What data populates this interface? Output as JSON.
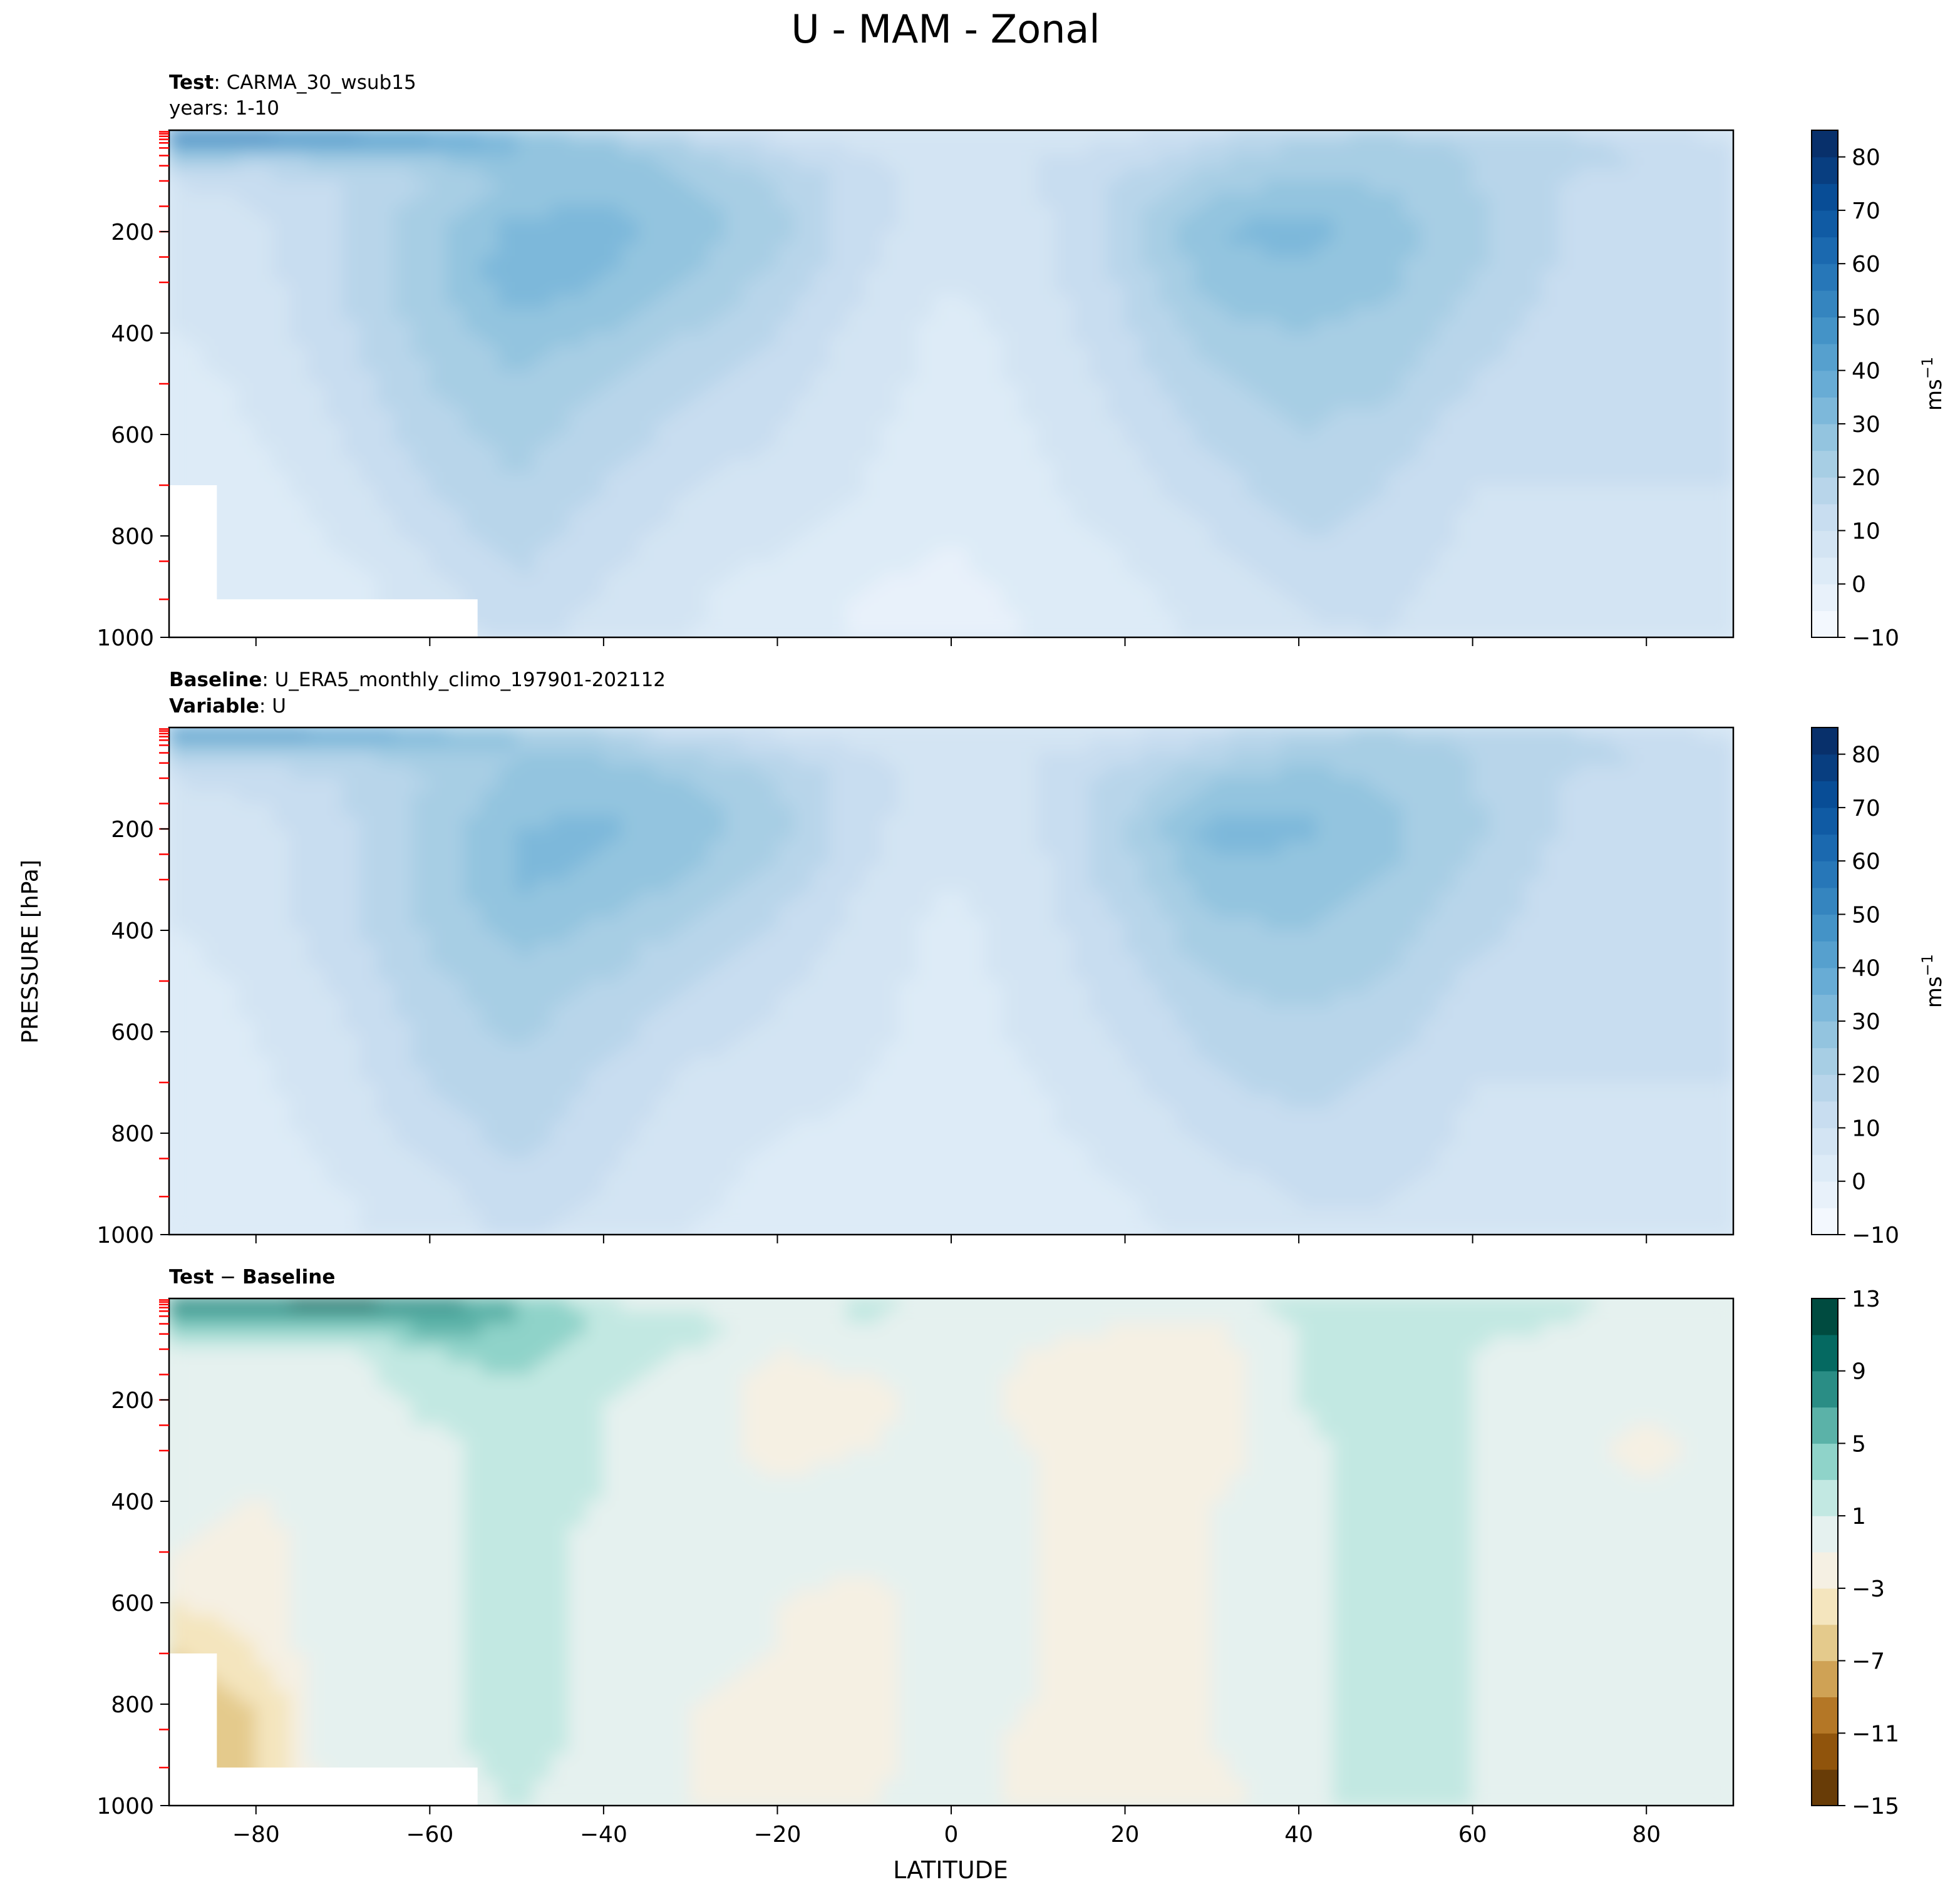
{
  "figure": {
    "title": "U - MAM - Zonal",
    "ylabel": "PRESSURE [hPa]",
    "xlabel": "LATITUDE"
  },
  "panels": [
    {
      "id": "test",
      "header_line1_bold": "Test",
      "header_line1_rest": ": CARMA_30_wsub15",
      "header_line2": "years: 1-10",
      "colorbar_label": "ms",
      "colorbar_exp": "−1"
    },
    {
      "id": "baseline",
      "header_line1_bold": "Baseline",
      "header_line1_rest": ": U_ERA5_monthly_climo_197901-202112",
      "header_line2_bold": "Variable",
      "header_line2_rest": ": U"
    },
    {
      "id": "diff",
      "header_bold_a": "Test",
      "header_sep": " − ",
      "header_bold_b": "Baseline"
    }
  ],
  "chart_data": [
    {
      "type": "heatmap",
      "title": "Test : CARMA_30_wsub15 / years: 1-10",
      "xlim": [
        -90,
        90
      ],
      "ylim": [
        1000,
        0
      ],
      "x_ticks": [
        -80,
        -60,
        -40,
        -20,
        0,
        20,
        40,
        60,
        80
      ],
      "y_ticks": [
        200,
        400,
        600,
        800,
        1000
      ],
      "colorbar": {
        "cmap": "Blues",
        "label": "ms-1",
        "levels": [
          -10,
          -5,
          0,
          5,
          10,
          15,
          20,
          25,
          30,
          35,
          40,
          45,
          50,
          55,
          60,
          65,
          70,
          75,
          80,
          85
        ],
        "tick_values": [
          -10,
          0,
          10,
          20,
          30,
          40,
          50,
          60,
          70,
          80
        ],
        "tick_labels": [
          "−10",
          "0",
          "10",
          "20",
          "30",
          "40",
          "50",
          "60",
          "70",
          "80"
        ]
      },
      "grid": {
        "lat": [
          -90,
          -80,
          -70,
          -60,
          -50,
          -40,
          -30,
          -20,
          -10,
          0,
          10,
          20,
          30,
          40,
          50,
          60,
          70,
          80,
          90
        ],
        "lev": [
          0,
          50,
          100,
          200,
          300,
          400,
          500,
          600,
          700,
          800,
          900,
          1000
        ],
        "values": [
          [
            60,
            60,
            55,
            45,
            30,
            20,
            12,
            8,
            5,
            5,
            5,
            8,
            12,
            18,
            20,
            18,
            15,
            10,
            8
          ],
          [
            25,
            22,
            22,
            25,
            30,
            28,
            22,
            15,
            10,
            8,
            10,
            12,
            18,
            22,
            22,
            20,
            18,
            15,
            12
          ],
          [
            10,
            12,
            15,
            20,
            26,
            28,
            25,
            20,
            12,
            8,
            10,
            16,
            22,
            26,
            24,
            20,
            15,
            12,
            10
          ],
          [
            5,
            8,
            15,
            24,
            32,
            32,
            28,
            22,
            12,
            5,
            8,
            18,
            30,
            32,
            28,
            22,
            15,
            12,
            10
          ],
          [
            5,
            8,
            15,
            24,
            33,
            30,
            25,
            18,
            10,
            5,
            8,
            16,
            27,
            29,
            26,
            20,
            14,
            10,
            10
          ],
          [
            5,
            7,
            14,
            22,
            28,
            25,
            20,
            15,
            8,
            3,
            7,
            14,
            23,
            25,
            23,
            18,
            12,
            10,
            10
          ],
          [
            3,
            6,
            12,
            20,
            24,
            20,
            16,
            12,
            7,
            3,
            6,
            12,
            19,
            22,
            21,
            15,
            10,
            10,
            10
          ],
          [
            2,
            5,
            10,
            18,
            22,
            18,
            13,
            10,
            6,
            2,
            5,
            10,
            16,
            20,
            18,
            12,
            10,
            10,
            10
          ],
          [
            0,
            3,
            8,
            15,
            20,
            15,
            10,
            8,
            5,
            1,
            4,
            8,
            13,
            18,
            15,
            10,
            10,
            10,
            10
          ],
          [
            0,
            0,
            6,
            12,
            18,
            12,
            8,
            6,
            3,
            0,
            3,
            6,
            10,
            15,
            14,
            9,
            8,
            8,
            9
          ],
          [
            0,
            0,
            3,
            8,
            14,
            10,
            6,
            3,
            0,
            -1,
            1,
            4,
            7,
            11,
            12,
            7,
            6,
            7,
            7
          ],
          [
            0,
            0,
            2,
            7,
            12,
            8,
            5,
            2,
            -1,
            -1,
            0,
            3,
            6,
            9,
            10,
            6,
            5,
            6,
            6
          ]
        ]
      }
    },
    {
      "type": "heatmap",
      "title": "Baseline : U_ERA5_monthly_climo_197901-202112 / Variable : U",
      "xlim": [
        -90,
        90
      ],
      "ylim": [
        1000,
        0
      ],
      "x_ticks": [
        -80,
        -60,
        -40,
        -20,
        0,
        20,
        40,
        60,
        80
      ],
      "y_ticks": [
        200,
        400,
        600,
        800,
        1000
      ],
      "colorbar": {
        "cmap": "Blues",
        "label": "ms-1",
        "levels": [
          -10,
          -5,
          0,
          5,
          10,
          15,
          20,
          25,
          30,
          35,
          40,
          45,
          50,
          55,
          60,
          65,
          70,
          75,
          80,
          85
        ],
        "tick_values": [
          -10,
          0,
          10,
          20,
          30,
          40,
          50,
          60,
          70,
          80
        ],
        "tick_labels": [
          "−10",
          "0",
          "10",
          "20",
          "30",
          "40",
          "50",
          "60",
          "70",
          "80"
        ]
      },
      "grid": {
        "lat": [
          -90,
          -80,
          -70,
          -60,
          -50,
          -40,
          -30,
          -20,
          -10,
          0,
          10,
          20,
          30,
          40,
          50,
          60,
          70,
          80,
          90
        ],
        "lev": [
          0,
          50,
          100,
          200,
          300,
          400,
          500,
          600,
          700,
          800,
          900,
          1000
        ],
        "values": [
          [
            50,
            50,
            45,
            35,
            25,
            18,
            10,
            8,
            5,
            5,
            5,
            8,
            12,
            18,
            20,
            18,
            15,
            10,
            8
          ],
          [
            20,
            20,
            20,
            22,
            25,
            24,
            20,
            15,
            10,
            8,
            10,
            12,
            18,
            22,
            22,
            20,
            18,
            15,
            12
          ],
          [
            10,
            12,
            15,
            20,
            26,
            28,
            25,
            20,
            12,
            7,
            10,
            17,
            24,
            27,
            24,
            20,
            15,
            12,
            10
          ],
          [
            5,
            8,
            14,
            22,
            30,
            31,
            28,
            22,
            12,
            5,
            9,
            20,
            32,
            31,
            27,
            21,
            15,
            12,
            10
          ],
          [
            5,
            8,
            14,
            22,
            31,
            29,
            25,
            18,
            10,
            5,
            9,
            18,
            28,
            28,
            25,
            19,
            13,
            10,
            10
          ],
          [
            5,
            7,
            13,
            21,
            27,
            24,
            19,
            14,
            8,
            3,
            8,
            15,
            24,
            25,
            22,
            17,
            12,
            10,
            10
          ],
          [
            3,
            6,
            11,
            19,
            23,
            20,
            15,
            11,
            7,
            3,
            7,
            13,
            20,
            22,
            20,
            14,
            10,
            10,
            10
          ],
          [
            2,
            5,
            9,
            17,
            21,
            17,
            12,
            9,
            6,
            3,
            6,
            11,
            17,
            19,
            17,
            12,
            10,
            10,
            10
          ],
          [
            1,
            4,
            8,
            15,
            19,
            14,
            9,
            7,
            5,
            3,
            5,
            9,
            14,
            17,
            14,
            10,
            10,
            10,
            10
          ],
          [
            2,
            3,
            7,
            12,
            17,
            12,
            7,
            5,
            4,
            3,
            4,
            7,
            11,
            14,
            13,
            9,
            9,
            9,
            9
          ],
          [
            2,
            3,
            5,
            9,
            13,
            10,
            6,
            4,
            3,
            2,
            3,
            5,
            8,
            11,
            11,
            8,
            7,
            7,
            7
          ],
          [
            2,
            3,
            4,
            7,
            11,
            8,
            5,
            3,
            2,
            2,
            3,
            4,
            6,
            9,
            9,
            7,
            6,
            6,
            6
          ]
        ]
      }
    },
    {
      "type": "heatmap",
      "title": "Test − Baseline",
      "xlim": [
        -90,
        90
      ],
      "ylim": [
        1000,
        0
      ],
      "x_ticks": [
        -80,
        -60,
        -40,
        -20,
        0,
        20,
        40,
        60,
        80
      ],
      "y_ticks": [
        200,
        400,
        600,
        800,
        1000
      ],
      "colorbar": {
        "cmap": "BrBG",
        "levels": [
          -15,
          -13,
          -11,
          -9,
          -7,
          -5,
          -3,
          -1,
          1,
          3,
          5,
          7,
          9,
          11,
          13
        ],
        "tick_values": [
          -15,
          -11,
          -7,
          -3,
          1,
          5,
          9,
          13
        ],
        "tick_labels": [
          "−15",
          "−11",
          "−7",
          "−3",
          "1",
          "5",
          "9",
          "13"
        ]
      },
      "grid": {
        "lat": [
          -90,
          -80,
          -70,
          -60,
          -50,
          -40,
          -30,
          -20,
          -10,
          0,
          10,
          20,
          30,
          40,
          50,
          60,
          70,
          80,
          90
        ],
        "lev": [
          0,
          50,
          100,
          200,
          300,
          400,
          500,
          600,
          700,
          800,
          900,
          1000
        ],
        "values": [
          [
            10,
            10,
            11,
            9,
            5,
            1,
            -1,
            -1,
            2,
            0,
            -1,
            -1,
            0,
            2,
            2,
            3,
            2,
            0,
            0
          ],
          [
            5,
            5,
            5,
            6,
            5,
            3,
            2,
            0,
            1,
            0,
            0,
            -1,
            -1,
            1,
            2,
            2,
            1,
            0,
            0
          ],
          [
            0,
            0,
            1,
            3,
            4,
            2,
            1,
            -1,
            0,
            0,
            -1,
            -2,
            -2,
            1,
            3,
            1,
            0,
            0,
            0
          ],
          [
            0,
            -1,
            -1,
            2,
            2,
            1,
            0,
            -2,
            -2,
            0,
            -2,
            -3,
            -2,
            1,
            3,
            1,
            0,
            0,
            0
          ],
          [
            0,
            -1,
            -1,
            0,
            2,
            1,
            0,
            -2,
            -1,
            0,
            -1,
            -3,
            -2,
            0,
            3,
            1,
            0,
            -2,
            0
          ],
          [
            0,
            -1,
            0,
            0,
            2,
            1,
            0,
            0,
            0,
            0,
            -1,
            -2,
            -1,
            0,
            3,
            1,
            0,
            0,
            0
          ],
          [
            -1,
            -2,
            0,
            0,
            2,
            0,
            0,
            0,
            0,
            0,
            -1,
            -2,
            -1,
            0,
            2,
            1,
            0,
            0,
            0
          ],
          [
            -3,
            -2,
            0,
            0,
            2,
            0,
            0,
            -1,
            -2,
            0,
            -1,
            -2,
            -1,
            0,
            2,
            1,
            0,
            0,
            0
          ],
          [
            -5,
            -3,
            1,
            0,
            2,
            0,
            0,
            -1,
            -2,
            0,
            -1,
            -2,
            -1,
            0,
            2,
            1,
            0,
            0,
            0
          ],
          [
            -7,
            -5,
            1,
            0,
            2,
            0,
            -1,
            -2,
            -2,
            0,
            -1,
            -2,
            -1,
            0,
            2,
            1,
            0,
            0,
            0
          ],
          [
            -9,
            -5,
            1,
            0,
            2,
            0,
            -1,
            -2,
            -2,
            0,
            -2,
            -2,
            -1,
            0,
            2,
            1,
            0,
            0,
            0
          ],
          [
            -9,
            -5,
            0,
            0,
            1,
            0,
            -1,
            -2,
            -1,
            0,
            -2,
            -3,
            -2,
            0,
            2,
            1,
            0,
            0,
            0
          ]
        ]
      }
    }
  ]
}
